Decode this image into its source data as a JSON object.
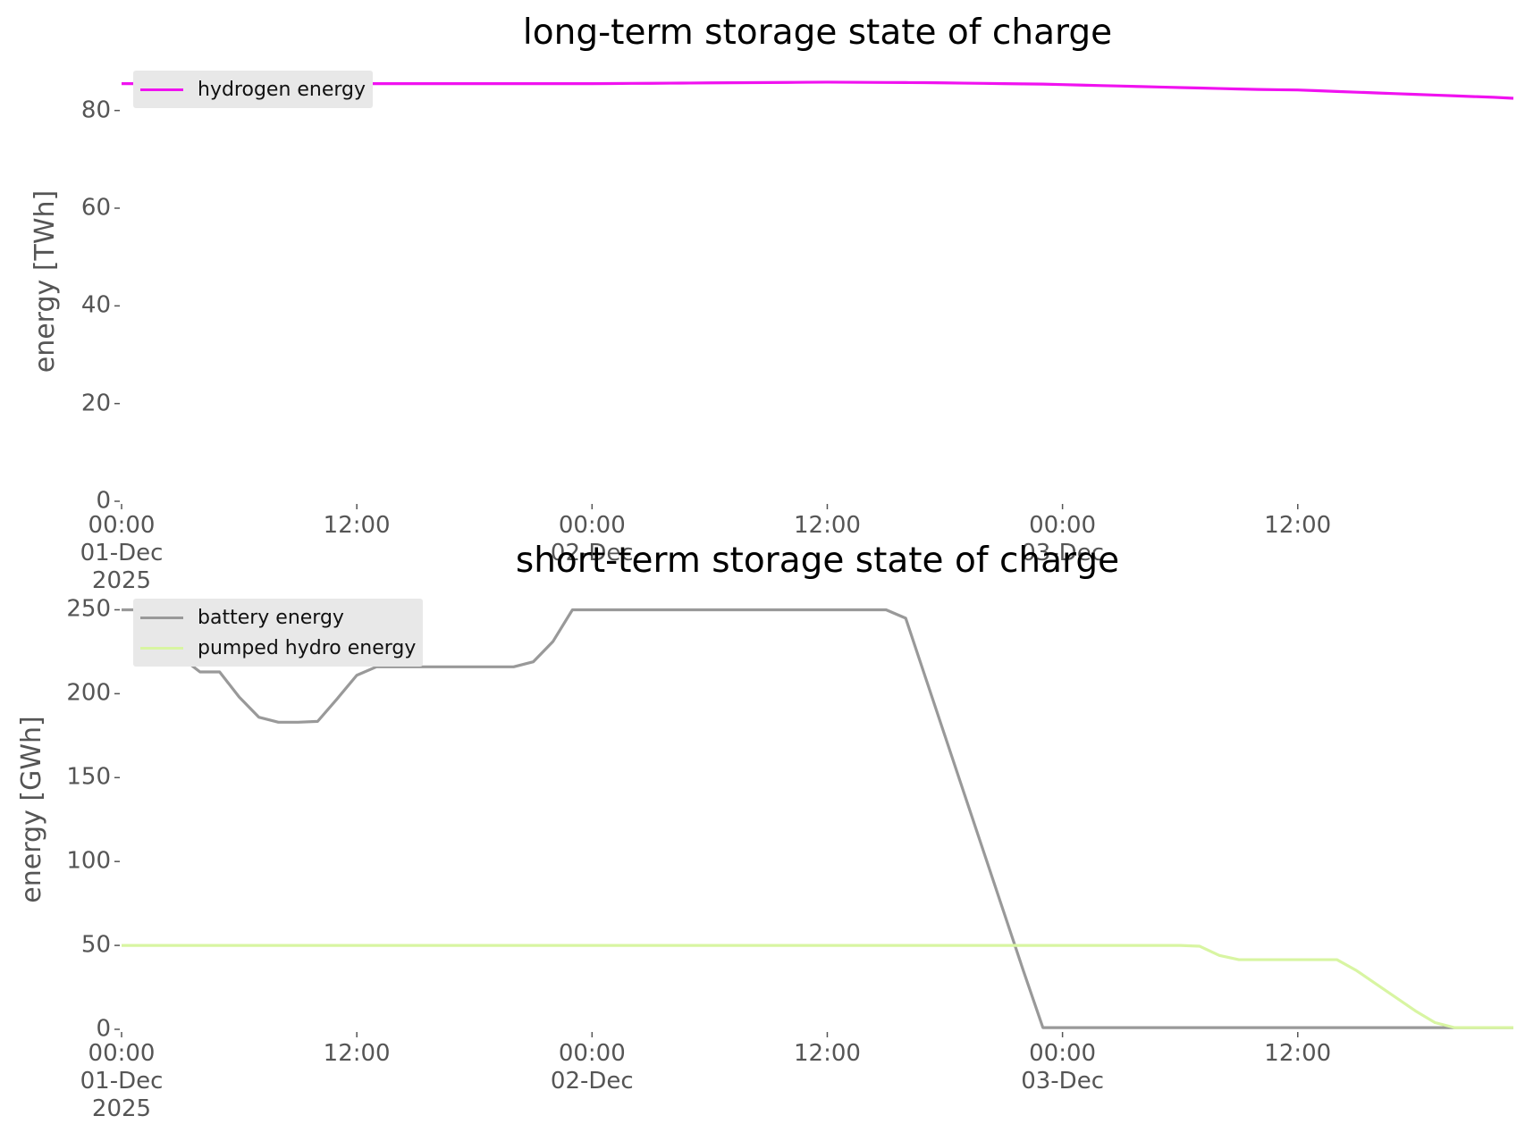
{
  "chart_data": [
    {
      "type": "line",
      "title": "long-term storage state of charge",
      "y_label": "energy [TWh]",
      "legend": "upper left",
      "x": [
        "2025-12-01 00:00",
        "2025-12-01 01:00",
        "2025-12-01 02:00",
        "2025-12-01 03:00",
        "2025-12-01 04:00",
        "2025-12-01 05:00",
        "2025-12-01 06:00",
        "2025-12-01 07:00",
        "2025-12-01 08:00",
        "2025-12-01 09:00",
        "2025-12-01 10:00",
        "2025-12-01 11:00",
        "2025-12-01 12:00",
        "2025-12-01 13:00",
        "2025-12-01 14:00",
        "2025-12-01 15:00",
        "2025-12-01 16:00",
        "2025-12-01 17:00",
        "2025-12-01 18:00",
        "2025-12-01 19:00",
        "2025-12-01 20:00",
        "2025-12-01 21:00",
        "2025-12-01 22:00",
        "2025-12-01 23:00",
        "2025-12-02 00:00",
        "2025-12-02 01:00",
        "2025-12-02 02:00",
        "2025-12-02 03:00",
        "2025-12-02 04:00",
        "2025-12-02 05:00",
        "2025-12-02 06:00",
        "2025-12-02 07:00",
        "2025-12-02 08:00",
        "2025-12-02 09:00",
        "2025-12-02 10:00",
        "2025-12-02 11:00",
        "2025-12-02 12:00",
        "2025-12-02 13:00",
        "2025-12-02 14:00",
        "2025-12-02 15:00",
        "2025-12-02 16:00",
        "2025-12-02 17:00",
        "2025-12-02 18:00",
        "2025-12-02 19:00",
        "2025-12-02 20:00",
        "2025-12-02 21:00",
        "2025-12-02 22:00",
        "2025-12-02 23:00",
        "2025-12-03 00:00",
        "2025-12-03 01:00",
        "2025-12-03 02:00",
        "2025-12-03 03:00",
        "2025-12-03 04:00",
        "2025-12-03 05:00",
        "2025-12-03 06:00",
        "2025-12-03 07:00",
        "2025-12-03 08:00",
        "2025-12-03 09:00",
        "2025-12-03 10:00",
        "2025-12-03 11:00",
        "2025-12-03 12:00",
        "2025-12-03 13:00",
        "2025-12-03 14:00",
        "2025-12-03 15:00",
        "2025-12-03 16:00",
        "2025-12-03 17:00",
        "2025-12-03 18:00",
        "2025-12-03 19:00",
        "2025-12-03 20:00",
        "2025-12-03 21:00",
        "2025-12-03 22:00",
        "2025-12-03 23:00"
      ],
      "series": [
        {
          "name": "hydrogen energy",
          "color": "#f012f0",
          "values": [
            85.5,
            85.5,
            85.5,
            85.5,
            85.5,
            85.5,
            85.5,
            85.5,
            85.5,
            85.5,
            85.5,
            85.5,
            85.5,
            85.5,
            85.5,
            85.5,
            85.5,
            85.5,
            85.5,
            85.5,
            85.5,
            85.5,
            85.5,
            85.5,
            85.5,
            85.52,
            85.55,
            85.57,
            85.6,
            85.62,
            85.65,
            85.68,
            85.7,
            85.72,
            85.75,
            85.78,
            85.8,
            85.78,
            85.76,
            85.74,
            85.72,
            85.7,
            85.65,
            85.6,
            85.55,
            85.5,
            85.45,
            85.4,
            85.3,
            85.2,
            85.1,
            85.0,
            84.9,
            84.8,
            84.7,
            84.6,
            84.5,
            84.4,
            84.3,
            84.25,
            84.2,
            84.05,
            83.9,
            83.75,
            83.6,
            83.45,
            83.3,
            83.15,
            83.0,
            82.85,
            82.7,
            82.5
          ]
        }
      ],
      "xlim": [
        "2025-12-01 00:00",
        "2025-12-03 23:00"
      ],
      "xticks": [
        {
          "value": "2025-12-01 00:00",
          "label": "00:00\n01-Dec\n2025"
        },
        {
          "value": "2025-12-01 12:00",
          "label": "12:00"
        },
        {
          "value": "2025-12-02 00:00",
          "label": "00:00\n02-Dec"
        },
        {
          "value": "2025-12-02 12:00",
          "label": "12:00"
        },
        {
          "value": "2025-12-03 00:00",
          "label": "00:00\n03-Dec"
        },
        {
          "value": "2025-12-03 12:00",
          "label": "12:00"
        }
      ],
      "ylim": [
        0,
        90
      ],
      "yticks": [
        0,
        20,
        40,
        60,
        80
      ]
    },
    {
      "type": "line",
      "title": "short-term storage state of charge",
      "y_label": "energy [GWh]",
      "legend": "upper left",
      "x": [
        "2025-12-01 00:00",
        "2025-12-01 01:00",
        "2025-12-01 02:00",
        "2025-12-01 03:00",
        "2025-12-01 04:00",
        "2025-12-01 05:00",
        "2025-12-01 06:00",
        "2025-12-01 07:00",
        "2025-12-01 08:00",
        "2025-12-01 09:00",
        "2025-12-01 10:00",
        "2025-12-01 11:00",
        "2025-12-01 12:00",
        "2025-12-01 13:00",
        "2025-12-01 14:00",
        "2025-12-01 15:00",
        "2025-12-01 16:00",
        "2025-12-01 17:00",
        "2025-12-01 18:00",
        "2025-12-01 19:00",
        "2025-12-01 20:00",
        "2025-12-01 21:00",
        "2025-12-01 22:00",
        "2025-12-01 23:00",
        "2025-12-02 00:00",
        "2025-12-02 01:00",
        "2025-12-02 02:00",
        "2025-12-02 03:00",
        "2025-12-02 04:00",
        "2025-12-02 05:00",
        "2025-12-02 06:00",
        "2025-12-02 07:00",
        "2025-12-02 08:00",
        "2025-12-02 09:00",
        "2025-12-02 10:00",
        "2025-12-02 11:00",
        "2025-12-02 12:00",
        "2025-12-02 13:00",
        "2025-12-02 14:00",
        "2025-12-02 15:00",
        "2025-12-02 16:00",
        "2025-12-02 17:00",
        "2025-12-02 18:00",
        "2025-12-02 19:00",
        "2025-12-02 20:00",
        "2025-12-02 21:00",
        "2025-12-02 22:00",
        "2025-12-02 23:00",
        "2025-12-03 00:00",
        "2025-12-03 01:00",
        "2025-12-03 02:00",
        "2025-12-03 03:00",
        "2025-12-03 04:00",
        "2025-12-03 05:00",
        "2025-12-03 06:00",
        "2025-12-03 07:00",
        "2025-12-03 08:00",
        "2025-12-03 09:00",
        "2025-12-03 10:00",
        "2025-12-03 11:00",
        "2025-12-03 12:00",
        "2025-12-03 13:00",
        "2025-12-03 14:00",
        "2025-12-03 15:00",
        "2025-12-03 16:00",
        "2025-12-03 17:00",
        "2025-12-03 18:00",
        "2025-12-03 19:00",
        "2025-12-03 20:00",
        "2025-12-03 21:00",
        "2025-12-03 22:00",
        "2025-12-03 23:00"
      ],
      "series": [
        {
          "name": "battery energy",
          "color": "#999999",
          "values": [
            250,
            250,
            241,
            222,
            213,
            213,
            198,
            186,
            183,
            183,
            183.5,
            197,
            211,
            216,
            216,
            216,
            216,
            216,
            216,
            216,
            216,
            219,
            231,
            250,
            250,
            250,
            250,
            250,
            250,
            250,
            250,
            250,
            250,
            250,
            250,
            250,
            250,
            250,
            250,
            250,
            245,
            210,
            175,
            140,
            105,
            70,
            35,
            1,
            1,
            1,
            1,
            1,
            1,
            1,
            1,
            1,
            1,
            1,
            1,
            1,
            1,
            1,
            1,
            1,
            1,
            1,
            1,
            1,
            1,
            1,
            1,
            1
          ]
        },
        {
          "name": "pumped hydro energy",
          "color": "#d8f5a2",
          "values": [
            50,
            50,
            50,
            50,
            50,
            50,
            50,
            50,
            50,
            50,
            50,
            50,
            50,
            50,
            50,
            50,
            50,
            50,
            50,
            50,
            50,
            50,
            50,
            50,
            50,
            50,
            50,
            50,
            50,
            50,
            50,
            50,
            50,
            50,
            50,
            50,
            50,
            50,
            50,
            50,
            50,
            50,
            50,
            50,
            50,
            50,
            50,
            50,
            50,
            50,
            50,
            50,
            50,
            50,
            50,
            49.5,
            44,
            41.5,
            41.5,
            41.5,
            41.5,
            41.5,
            41.5,
            35,
            27,
            19,
            11,
            4,
            1,
            1,
            1,
            1
          ]
        }
      ],
      "xlim": [
        "2025-12-01 00:00",
        "2025-12-03 23:00"
      ],
      "xticks": [
        {
          "value": "2025-12-01 00:00",
          "label": "00:00\n01-Dec\n2025"
        },
        {
          "value": "2025-12-01 12:00",
          "label": "12:00"
        },
        {
          "value": "2025-12-02 00:00",
          "label": "00:00\n02-Dec"
        },
        {
          "value": "2025-12-02 12:00",
          "label": "12:00"
        },
        {
          "value": "2025-12-03 00:00",
          "label": "00:00\n03-Dec"
        },
        {
          "value": "2025-12-03 12:00",
          "label": "12:00"
        }
      ],
      "ylim": [
        0,
        262.5
      ],
      "yticks": [
        0,
        50,
        100,
        150,
        200,
        250
      ]
    }
  ]
}
